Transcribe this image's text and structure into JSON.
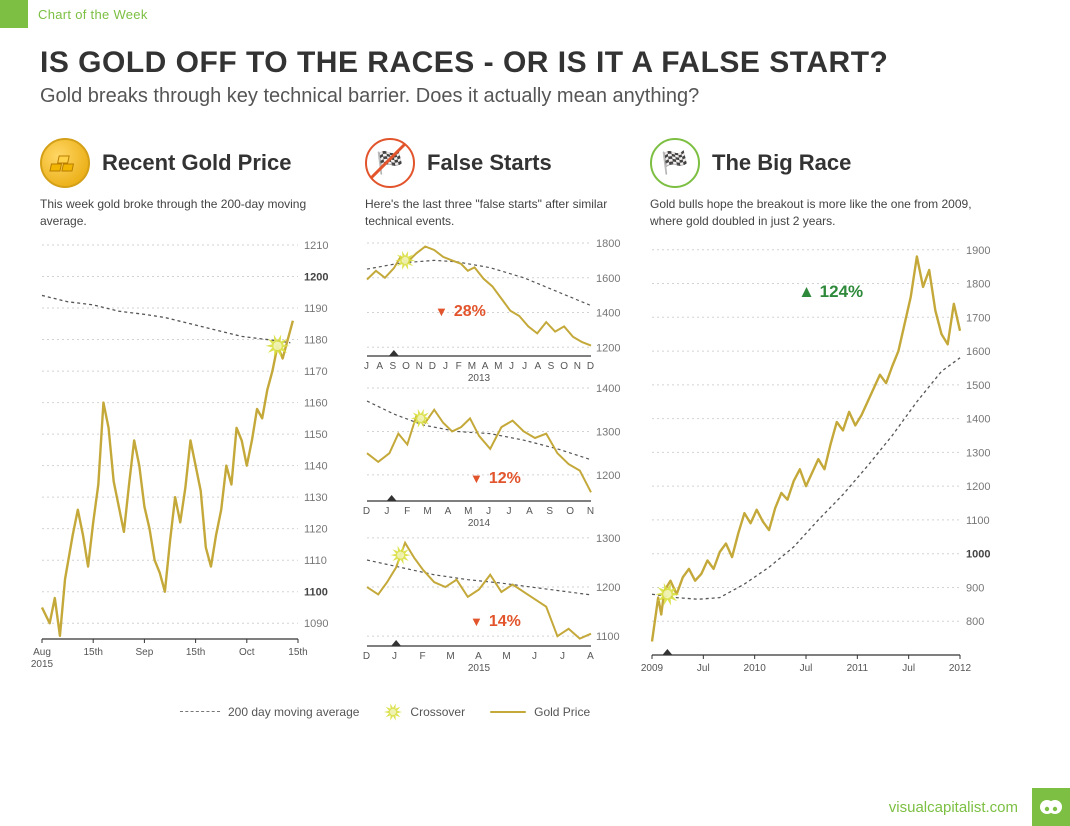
{
  "top_bar": {
    "label": "Chart of the Week",
    "accent": "#7cbf42"
  },
  "header": {
    "title": "IS GOLD OFF TO THE RACES - OR IS IT A FALSE START?",
    "subtitle": "Gold breaks through key technical barrier. Does it actually mean anything?"
  },
  "colors": {
    "gold_line": "#c4a93a",
    "ma_line": "#555555",
    "grid": "#d2d2d2",
    "accent_green": "#7cbf42",
    "accent_red": "#e2542b",
    "crossover": "#d9df3f"
  },
  "legend": {
    "ma": "200 day moving average",
    "crossover": "Crossover",
    "price": "Gold Price"
  },
  "panel1": {
    "title": "Recent Gold Price",
    "desc": "This week gold broke through\nthe 200-day moving average.",
    "ylim": [
      1085,
      1210
    ],
    "yticks": [
      1090,
      1100,
      1110,
      1120,
      1130,
      1140,
      1150,
      1160,
      1170,
      1180,
      1190,
      1200,
      1210
    ],
    "ybold": [
      1100,
      1200
    ],
    "xlabels": [
      "Aug\n2015",
      "15th",
      "Sep",
      "15th",
      "Oct",
      "15th"
    ],
    "ma": [
      [
        0,
        1194
      ],
      [
        10,
        1192
      ],
      [
        20,
        1191
      ],
      [
        30,
        1189
      ],
      [
        40,
        1188
      ],
      [
        48,
        1187
      ],
      [
        58,
        1185
      ],
      [
        68,
        1183
      ],
      [
        78,
        1181
      ],
      [
        88,
        1180
      ],
      [
        97,
        1179
      ]
    ],
    "ma_then_price_crossover": [
      92,
      1178
    ],
    "price": [
      [
        0,
        1095
      ],
      [
        3,
        1090
      ],
      [
        5,
        1098
      ],
      [
        7,
        1086
      ],
      [
        9,
        1104
      ],
      [
        12,
        1118
      ],
      [
        14,
        1126
      ],
      [
        16,
        1118
      ],
      [
        18,
        1108
      ],
      [
        20,
        1122
      ],
      [
        22,
        1134
      ],
      [
        24,
        1160
      ],
      [
        26,
        1152
      ],
      [
        28,
        1135
      ],
      [
        30,
        1127
      ],
      [
        32,
        1119
      ],
      [
        34,
        1134
      ],
      [
        36,
        1148
      ],
      [
        38,
        1140
      ],
      [
        40,
        1127
      ],
      [
        42,
        1120
      ],
      [
        44,
        1110
      ],
      [
        46,
        1106
      ],
      [
        48,
        1100
      ],
      [
        50,
        1116
      ],
      [
        52,
        1130
      ],
      [
        54,
        1122
      ],
      [
        56,
        1133
      ],
      [
        58,
        1148
      ],
      [
        60,
        1140
      ],
      [
        62,
        1132
      ],
      [
        64,
        1114
      ],
      [
        66,
        1108
      ],
      [
        68,
        1118
      ],
      [
        70,
        1126
      ],
      [
        72,
        1140
      ],
      [
        74,
        1134
      ],
      [
        76,
        1152
      ],
      [
        78,
        1148
      ],
      [
        80,
        1140
      ],
      [
        82,
        1148
      ],
      [
        84,
        1158
      ],
      [
        86,
        1155
      ],
      [
        88,
        1164
      ],
      [
        90,
        1170
      ],
      [
        92,
        1178
      ],
      [
        94,
        1174
      ],
      [
        96,
        1180
      ],
      [
        98,
        1186
      ]
    ]
  },
  "panel2": {
    "title": "False Starts",
    "desc": "Here's the last three \"false starts\"\nafter similar technical events.",
    "charts": [
      {
        "ylim": [
          1150,
          1800
        ],
        "yticks": [
          1200,
          1400,
          1600,
          1800
        ],
        "xlabels": [
          "J",
          "A",
          "S",
          "O",
          "N",
          "D",
          "J",
          "F",
          "M",
          "A",
          "M",
          "J",
          "J",
          "A",
          "S",
          "O",
          "N",
          "D"
        ],
        "sub_x": "2013",
        "ma": [
          [
            0,
            1650
          ],
          [
            15,
            1685
          ],
          [
            30,
            1700
          ],
          [
            40,
            1692
          ],
          [
            55,
            1658
          ],
          [
            70,
            1600
          ],
          [
            85,
            1520
          ],
          [
            100,
            1440
          ]
        ],
        "price": [
          [
            0,
            1590
          ],
          [
            4,
            1640
          ],
          [
            8,
            1600
          ],
          [
            12,
            1655
          ],
          [
            15,
            1720
          ],
          [
            18,
            1690
          ],
          [
            22,
            1740
          ],
          [
            26,
            1780
          ],
          [
            30,
            1760
          ],
          [
            34,
            1720
          ],
          [
            38,
            1700
          ],
          [
            42,
            1680
          ],
          [
            45,
            1640
          ],
          [
            48,
            1660
          ],
          [
            52,
            1595
          ],
          [
            56,
            1550
          ],
          [
            60,
            1480
          ],
          [
            64,
            1410
          ],
          [
            68,
            1380
          ],
          [
            72,
            1320
          ],
          [
            76,
            1280
          ],
          [
            80,
            1345
          ],
          [
            84,
            1290
          ],
          [
            88,
            1320
          ],
          [
            92,
            1260
          ],
          [
            96,
            1230
          ],
          [
            100,
            1210
          ]
        ],
        "crossover": [
          17,
          1700
        ],
        "cross_x": 12,
        "delta": "28%",
        "dir": "down"
      },
      {
        "ylim": [
          1140,
          1400
        ],
        "yticks": [
          1200,
          1300,
          1400
        ],
        "xlabels": [
          "D",
          "J",
          "F",
          "M",
          "A",
          "M",
          "J",
          "J",
          "A",
          "S",
          "O",
          "N"
        ],
        "sub_x": "2014",
        "ma": [
          [
            0,
            1370
          ],
          [
            12,
            1340
          ],
          [
            25,
            1315
          ],
          [
            40,
            1300
          ],
          [
            55,
            1295
          ],
          [
            70,
            1280
          ],
          [
            85,
            1260
          ],
          [
            100,
            1235
          ]
        ],
        "price": [
          [
            0,
            1250
          ],
          [
            5,
            1230
          ],
          [
            10,
            1250
          ],
          [
            14,
            1295
          ],
          [
            18,
            1270
          ],
          [
            22,
            1335
          ],
          [
            26,
            1320
          ],
          [
            30,
            1350
          ],
          [
            34,
            1320
          ],
          [
            38,
            1300
          ],
          [
            42,
            1310
          ],
          [
            46,
            1330
          ],
          [
            50,
            1290
          ],
          [
            55,
            1260
          ],
          [
            60,
            1310
          ],
          [
            65,
            1325
          ],
          [
            70,
            1300
          ],
          [
            75,
            1285
          ],
          [
            80,
            1295
          ],
          [
            85,
            1250
          ],
          [
            90,
            1225
          ],
          [
            95,
            1210
          ],
          [
            100,
            1160
          ]
        ],
        "crossover": [
          24,
          1330
        ],
        "cross_x": 11,
        "delta": "12%",
        "dir": "down"
      },
      {
        "ylim": [
          1080,
          1310
        ],
        "yticks": [
          1100,
          1200,
          1300
        ],
        "xlabels": [
          "D",
          "J",
          "F",
          "M",
          "A",
          "M",
          "J",
          "J",
          "A"
        ],
        "sub_x": "2015",
        "ma": [
          [
            0,
            1255
          ],
          [
            15,
            1240
          ],
          [
            30,
            1225
          ],
          [
            45,
            1215
          ],
          [
            60,
            1208
          ],
          [
            75,
            1199
          ],
          [
            90,
            1190
          ],
          [
            100,
            1184
          ]
        ],
        "price": [
          [
            0,
            1200
          ],
          [
            5,
            1185
          ],
          [
            9,
            1210
          ],
          [
            13,
            1240
          ],
          [
            17,
            1290
          ],
          [
            21,
            1260
          ],
          [
            25,
            1235
          ],
          [
            30,
            1210
          ],
          [
            35,
            1200
          ],
          [
            40,
            1215
          ],
          [
            45,
            1180
          ],
          [
            50,
            1195
          ],
          [
            55,
            1225
          ],
          [
            60,
            1190
          ],
          [
            65,
            1205
          ],
          [
            70,
            1190
          ],
          [
            75,
            1175
          ],
          [
            80,
            1160
          ],
          [
            85,
            1100
          ],
          [
            90,
            1115
          ],
          [
            95,
            1095
          ],
          [
            100,
            1105
          ]
        ],
        "crossover": [
          15,
          1265
        ],
        "cross_x": 13,
        "delta": "14%",
        "dir": "down"
      }
    ]
  },
  "panel3": {
    "title": "The Big Race",
    "desc": "Gold bulls hope the breakout is more like the one\nfrom 2009, where gold doubled in just 2 years.",
    "ylim": [
      700,
      1920
    ],
    "yticks": [
      800,
      900,
      1000,
      1100,
      1200,
      1300,
      1400,
      1500,
      1600,
      1700,
      1800,
      1900
    ],
    "ybold": [
      1000
    ],
    "xlabels": [
      "2009",
      "Jul",
      "2010",
      "Jul",
      "2011",
      "Jul",
      "2012"
    ],
    "ma": [
      [
        0,
        880
      ],
      [
        8,
        870
      ],
      [
        15,
        865
      ],
      [
        22,
        870
      ],
      [
        30,
        910
      ],
      [
        38,
        960
      ],
      [
        46,
        1020
      ],
      [
        54,
        1100
      ],
      [
        62,
        1175
      ],
      [
        70,
        1260
      ],
      [
        78,
        1350
      ],
      [
        86,
        1450
      ],
      [
        94,
        1540
      ],
      [
        100,
        1580
      ]
    ],
    "price": [
      [
        0,
        740
      ],
      [
        2,
        870
      ],
      [
        3,
        820
      ],
      [
        4,
        890
      ],
      [
        6,
        920
      ],
      [
        8,
        880
      ],
      [
        10,
        930
      ],
      [
        12,
        955
      ],
      [
        14,
        920
      ],
      [
        16,
        940
      ],
      [
        18,
        980
      ],
      [
        20,
        955
      ],
      [
        22,
        1005
      ],
      [
        24,
        1030
      ],
      [
        26,
        990
      ],
      [
        28,
        1060
      ],
      [
        30,
        1120
      ],
      [
        32,
        1090
      ],
      [
        34,
        1130
      ],
      [
        36,
        1095
      ],
      [
        38,
        1070
      ],
      [
        40,
        1135
      ],
      [
        42,
        1180
      ],
      [
        44,
        1160
      ],
      [
        46,
        1215
      ],
      [
        48,
        1250
      ],
      [
        50,
        1200
      ],
      [
        52,
        1240
      ],
      [
        54,
        1280
      ],
      [
        56,
        1250
      ],
      [
        58,
        1325
      ],
      [
        60,
        1390
      ],
      [
        62,
        1365
      ],
      [
        64,
        1420
      ],
      [
        66,
        1380
      ],
      [
        68,
        1410
      ],
      [
        70,
        1450
      ],
      [
        72,
        1490
      ],
      [
        74,
        1530
      ],
      [
        76,
        1505
      ],
      [
        78,
        1555
      ],
      [
        80,
        1600
      ],
      [
        82,
        1680
      ],
      [
        84,
        1760
      ],
      [
        86,
        1880
      ],
      [
        88,
        1790
      ],
      [
        90,
        1840
      ],
      [
        92,
        1720
      ],
      [
        94,
        1650
      ],
      [
        96,
        1620
      ],
      [
        98,
        1740
      ],
      [
        100,
        1660
      ]
    ],
    "crossover": [
      5,
      880
    ],
    "cross_x": 5,
    "delta": "124%",
    "dir": "up"
  },
  "footer": {
    "site": "visualcapitalist.com"
  }
}
